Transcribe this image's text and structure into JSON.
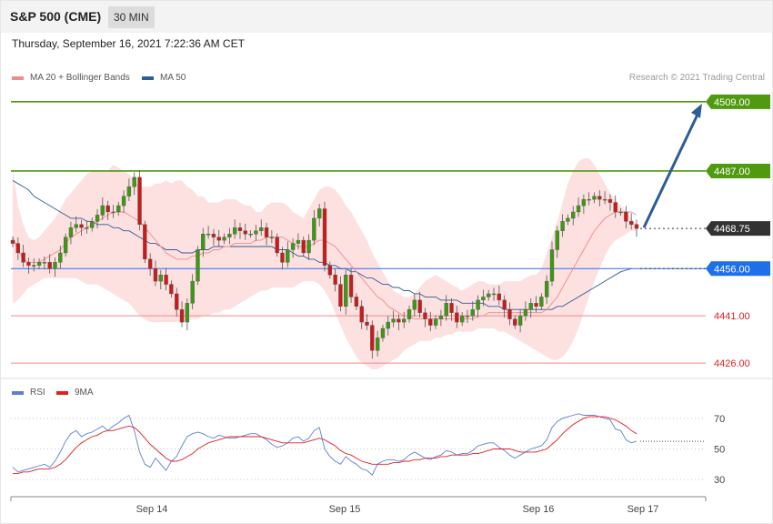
{
  "header": {
    "symbol": "S&P 500 (CME)",
    "interval": "30 MIN",
    "datetime": "Thursday, September 16, 2021 7:22:36 AM CET",
    "credit": "Research © 2021 Trading Central"
  },
  "legend": {
    "ma20_label": "MA 20 + Bollinger Bands",
    "ma50_label": "MA 50",
    "ma20_color": "#f28a8a",
    "ma50_color": "#2e5c9a"
  },
  "rsi_legend": {
    "rsi_label": "RSI",
    "ma_label": "9MA",
    "rsi_color": "#5b7fd6",
    "ma_color": "#e02020"
  },
  "chart_data": {
    "type": "candlestick",
    "ylim": [
      4424,
      4513
    ],
    "x_labels": [
      "Sep 14",
      "Sep 15",
      "Sep 16",
      "Sep 17"
    ],
    "levels": [
      {
        "value": 4509.0,
        "label": "4509.00",
        "kind": "resistance"
      },
      {
        "value": 4487.0,
        "label": "4487.00",
        "kind": "resistance"
      },
      {
        "value": 4468.75,
        "label": "4468.75",
        "kind": "last"
      },
      {
        "value": 4456.0,
        "label": "4456.00",
        "kind": "pivot"
      },
      {
        "value": 4441.0,
        "label": "4441.00",
        "kind": "support"
      },
      {
        "value": 4426.0,
        "label": "4426.00",
        "kind": "support"
      }
    ],
    "closes": [
      4464,
      4461,
      4458,
      4457,
      4457,
      4458,
      4458,
      4456,
      4458,
      4461,
      4466,
      4469,
      4470,
      4469,
      4469,
      4471,
      4473,
      4476,
      4474,
      4474,
      4476,
      4479,
      4482,
      4485,
      4470,
      4459,
      4456,
      4452,
      4454,
      4451,
      4448,
      4443,
      4439,
      4445,
      4452,
      4462,
      4467,
      4467,
      4466,
      4465,
      4466,
      4467,
      4469,
      4468,
      4467,
      4467,
      4468,
      4469,
      4466,
      4466,
      4461,
      4458,
      4462,
      4464,
      4465,
      4461,
      4465,
      4472,
      4475,
      4457,
      4454,
      4451,
      4444,
      4454,
      4447,
      4444,
      4439,
      4438,
      4430,
      4434,
      4437,
      4439,
      4440,
      4439,
      4440,
      4443,
      4446,
      4442,
      4440,
      4438,
      4440,
      4441,
      4445,
      4442,
      4439,
      4441,
      4441,
      4443,
      4446,
      4447,
      4448,
      4448,
      4446,
      4443,
      4440,
      4438,
      4441,
      4443,
      4445,
      4444,
      4447,
      4452,
      4462,
      4468,
      4471,
      4472,
      4474,
      4476,
      4478,
      4478,
      4479,
      4478,
      4478,
      4477,
      4474,
      4474,
      4471,
      4470,
      4468.75
    ],
    "bollinger": {
      "upper": [
        4488,
        4476,
        4470,
        4466,
        4465,
        4466,
        4468,
        4470,
        4472,
        4475,
        4478,
        4480,
        4482,
        4484,
        4486,
        4487,
        4487,
        4487,
        4487,
        4489,
        4488,
        4487,
        4486,
        4484,
        4482,
        4482,
        4482,
        4483,
        4483,
        4484,
        4483,
        4484,
        4484,
        4482,
        4481,
        4479,
        4479,
        4477,
        4477,
        4477,
        4478,
        4478,
        4478,
        4477,
        4476,
        4476,
        4474,
        4474,
        4476,
        4477,
        4477,
        4477,
        4476,
        4474,
        4473,
        4472,
        4475,
        4478,
        4481,
        4482,
        4482,
        4481,
        4479,
        4476,
        4474,
        4471,
        4468,
        4465,
        4461,
        4458,
        4455,
        4452,
        4449,
        4448,
        4447,
        4447,
        4448,
        4450,
        4452,
        4453,
        4454,
        4453,
        4452,
        4451,
        4450,
        4449,
        4450,
        4451,
        4452,
        4452,
        4451,
        4451,
        4451,
        4452,
        4452,
        4452,
        4452,
        4453,
        4454,
        4454,
        4456,
        4461,
        4466,
        4471,
        4477,
        4483,
        4487,
        4490,
        4491,
        4491,
        4489,
        4486,
        4483,
        4480,
        4478,
        4476,
        4474,
        4472,
        4470
      ],
      "lower": [
        4445,
        4446,
        4448,
        4450,
        4451,
        4452,
        4453,
        4453,
        4453,
        4453,
        4453,
        4453,
        4453,
        4452,
        4451,
        4451,
        4451,
        4450,
        4449,
        4448,
        4447,
        4446,
        4445,
        4443,
        4441,
        4440,
        4439,
        4439,
        4439,
        4439,
        4439,
        4439,
        4439,
        4439,
        4440,
        4440,
        4441,
        4441,
        4442,
        4442,
        4443,
        4443,
        4444,
        4445,
        4446,
        4447,
        4448,
        4449,
        4449,
        4450,
        4450,
        4450,
        4450,
        4450,
        4451,
        4452,
        4452,
        4452,
        4451,
        4449,
        4446,
        4442,
        4438,
        4434,
        4431,
        4428,
        4426,
        4425,
        4424,
        4424,
        4425,
        4426,
        4427,
        4428,
        4430,
        4431,
        4432,
        4433,
        4433,
        4433,
        4434,
        4434,
        4435,
        4435,
        4436,
        4436,
        4436,
        4436,
        4437,
        4437,
        4437,
        4437,
        4436,
        4436,
        4435,
        4434,
        4433,
        4432,
        4431,
        4430,
        4429,
        4428,
        4427,
        4427,
        4428,
        4430,
        4433,
        4437,
        4442,
        4447,
        4452,
        4456,
        4460,
        4463,
        4465,
        4466,
        4467,
        4468,
        4468
      ]
    },
    "ma20": [
      4466,
      4462,
      4459,
      4458,
      4458,
      4458,
      4459,
      4460,
      4461,
      4462,
      4464,
      4466,
      4467,
      4468,
      4469,
      4470,
      4471,
      4472,
      4473,
      4474,
      4474,
      4474,
      4473,
      4472,
      4471,
      4469,
      4467,
      4465,
      4463,
      4461,
      4460,
      4459,
      4459,
      4459,
      4460,
      4460,
      4461,
      4461,
      4462,
      4462,
      4463,
      4463,
      4464,
      4464,
      4464,
      4464,
      4465,
      4465,
      4466,
      4466,
      4466,
      4466,
      4465,
      4464,
      4463,
      4463,
      4463,
      4464,
      4465,
      4465,
      4464,
      4463,
      4461,
      4459,
      4457,
      4455,
      4453,
      4451,
      4449,
      4447,
      4446,
      4444,
      4443,
      4442,
      4441,
      4441,
      4440,
      4440,
      4440,
      4440,
      4440,
      4440,
      4440,
      4440,
      4440,
      4440,
      4440,
      4440,
      4441,
      4441,
      4442,
      4442,
      4442,
      4442,
      4442,
      4442,
      4442,
      4442,
      4442,
      4442,
      4442,
      4443,
      4445,
      4447,
      4450,
      4453,
      4456,
      4459,
      4462,
      4465,
      4468,
      4470,
      4472,
      4473,
      4474,
      4474,
      4474,
      4474,
      4473
    ],
    "ma50": [
      4484,
      4483,
      4482,
      4481,
      4479,
      4478,
      4477,
      4476,
      4475,
      4474,
      4473,
      4472,
      4472,
      4472,
      4471,
      4471,
      4470,
      4470,
      4470,
      4469,
      4469,
      4468,
      4468,
      4467,
      4466,
      4465,
      4464,
      4464,
      4463,
      4462,
      4462,
      4462,
      4461,
      4461,
      4461,
      4462,
      4462,
      4462,
      4463,
      4463,
      4463,
      4463,
      4463,
      4463,
      4463,
      4463,
      4463,
      4463,
      4463,
      4463,
      4462,
      4462,
      4462,
      4461,
      4460,
      4460,
      4459,
      4459,
      4458,
      4458,
      4457,
      4457,
      4456,
      4456,
      4455,
      4455,
      4454,
      4453,
      4453,
      4452,
      4451,
      4451,
      4450,
      4450,
      4449,
      4449,
      4448,
      4448,
      4447,
      4447,
      4447,
      4446,
      4446,
      4446,
      4446,
      4445,
      4445,
      4445,
      4445,
      4445,
      4444,
      4444,
      4444,
      4443,
      4443,
      4443,
      4443,
      4443,
      4443,
      4443,
      4443,
      4443,
      4443,
      4444,
      4444,
      4445,
      4446,
      4447,
      4448,
      4449,
      4450,
      4451,
      4452,
      4453,
      4454,
      4455,
      4455.5,
      4456
    ],
    "forecast": {
      "from": 4468.75,
      "to": 4509.0
    },
    "rsi": {
      "ylim": [
        20,
        80
      ],
      "levels": [
        70,
        50,
        30
      ],
      "rsi": [
        38,
        35,
        36,
        37,
        38,
        39,
        40,
        38,
        42,
        48,
        55,
        60,
        62,
        58,
        60,
        61,
        63,
        65,
        62,
        65,
        67,
        70,
        72,
        62,
        48,
        40,
        38,
        44,
        40,
        36,
        42,
        45,
        52,
        58,
        60,
        61,
        60,
        58,
        57,
        59,
        58,
        57,
        57,
        58,
        59,
        60,
        60,
        58,
        56,
        53,
        51,
        52,
        54,
        57,
        58,
        55,
        57,
        62,
        64,
        50,
        45,
        42,
        40,
        45,
        42,
        40,
        37,
        36,
        33,
        40,
        42,
        43,
        43,
        42,
        43,
        46,
        48,
        46,
        44,
        43,
        45,
        46,
        49,
        48,
        46,
        47,
        47,
        49,
        52,
        53,
        54,
        54,
        51,
        49,
        46,
        44,
        46,
        48,
        50,
        51,
        52,
        56,
        64,
        68,
        70,
        71,
        72,
        73,
        72,
        72,
        72,
        71,
        70,
        69,
        63,
        62,
        56,
        54,
        55
      ],
      "ma": [
        34,
        34,
        35,
        35,
        36,
        37,
        37,
        37,
        38,
        40,
        43,
        47,
        51,
        54,
        56,
        58,
        59,
        61,
        62,
        62,
        63,
        64,
        65,
        64,
        61,
        57,
        53,
        50,
        47,
        44,
        42,
        42,
        43,
        45,
        47,
        50,
        52,
        54,
        55,
        56,
        57,
        58,
        58,
        58,
        58,
        58,
        58,
        58,
        57,
        56,
        55,
        54,
        54,
        54,
        54,
        54,
        55,
        56,
        57,
        56,
        54,
        52,
        49,
        47,
        46,
        44,
        42,
        41,
        40,
        40,
        40,
        40,
        41,
        41,
        42,
        42,
        43,
        43,
        44,
        44,
        44,
        45,
        45,
        46,
        46,
        46,
        46,
        47,
        47,
        48,
        49,
        50,
        50,
        50,
        50,
        49,
        48,
        48,
        48,
        48,
        49,
        50,
        53,
        56,
        60,
        63,
        66,
        68,
        70,
        71,
        71,
        71,
        71,
        70,
        69,
        67,
        65,
        62,
        60
      ]
    }
  }
}
